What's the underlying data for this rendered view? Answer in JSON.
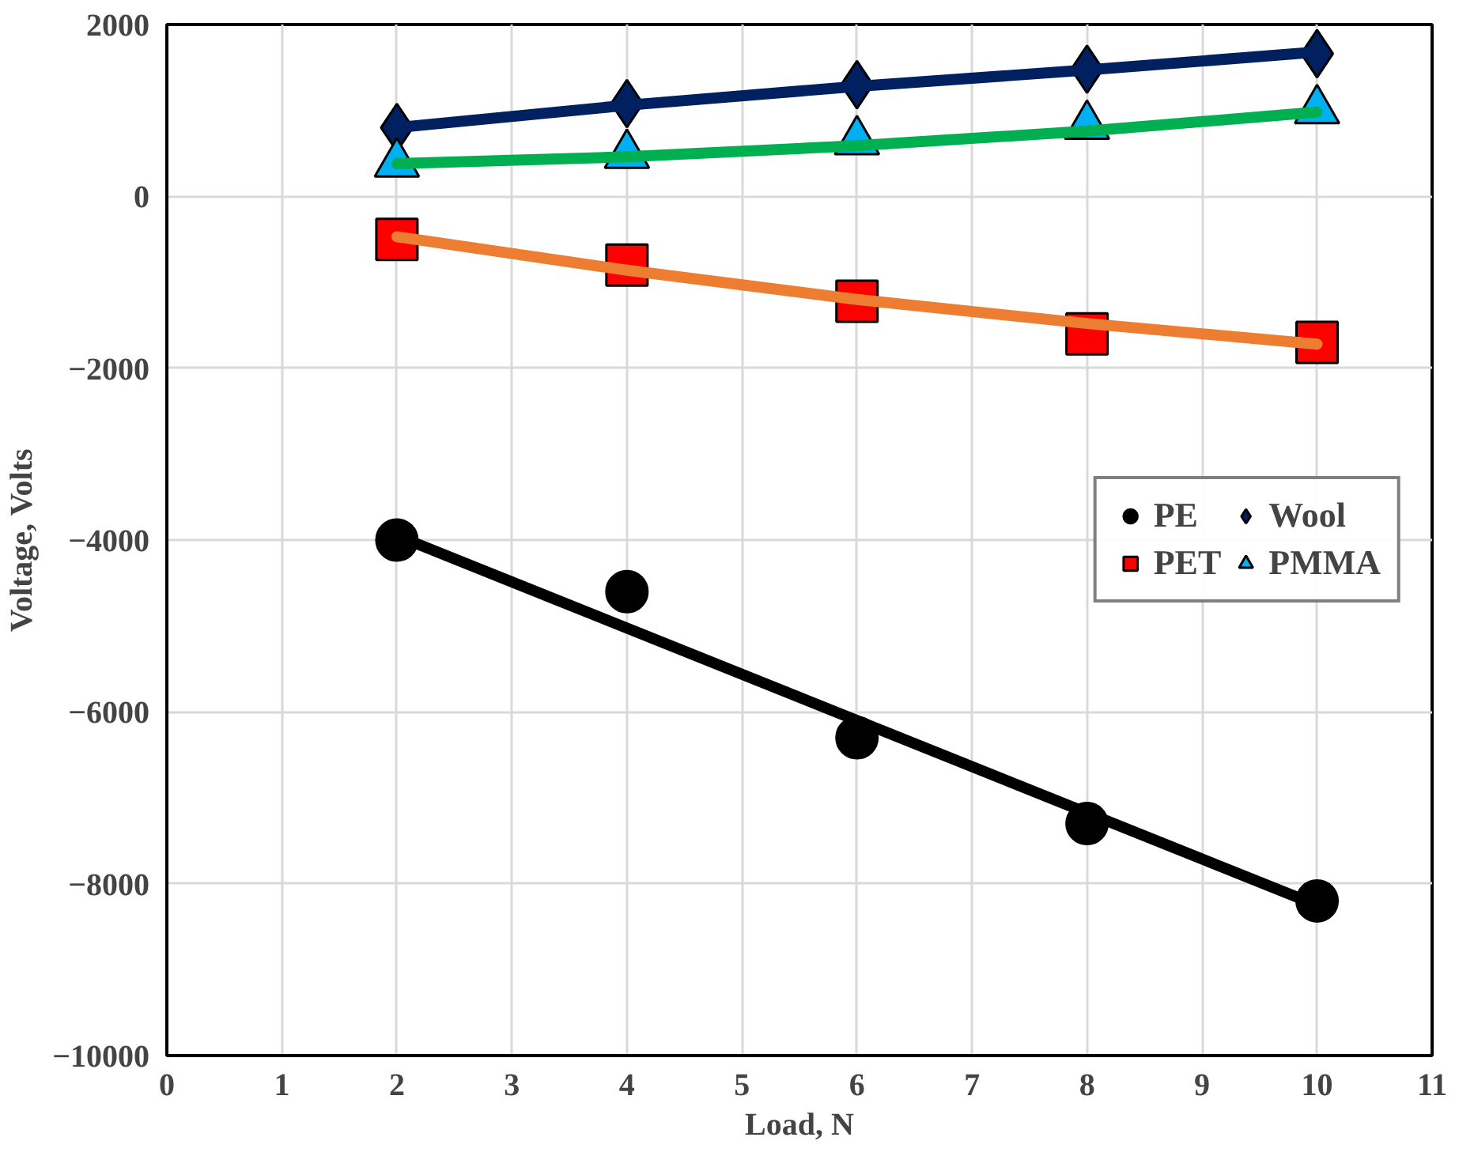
{
  "chart_data": {
    "type": "scatter",
    "xlabel": "Load, N",
    "ylabel": "Voltage, Volts",
    "xlim": [
      0,
      11
    ],
    "xticks": [
      0,
      1,
      2,
      3,
      4,
      5,
      6,
      7,
      8,
      9,
      10,
      11
    ],
    "ylim": [
      -10000,
      2000
    ],
    "yticks": [
      -10000,
      -8000,
      -6000,
      -4000,
      -2000,
      0,
      2000
    ],
    "grid": true,
    "legend": "right",
    "series": [
      {
        "name": "PE",
        "color": "#000000",
        "marker": "circle",
        "x": [
          2,
          4,
          6,
          8,
          10
        ],
        "values": [
          -4000,
          -4600,
          -6300,
          -7300,
          -8200
        ]
      },
      {
        "name": "PET",
        "color": "#ff0000",
        "marker": "square",
        "x": [
          2,
          4,
          6,
          8,
          10
        ],
        "values": [
          -500,
          -800,
          -1220,
          -1600,
          -1700
        ]
      },
      {
        "name": "Wool",
        "color": "#002060",
        "marker": "diamond",
        "x": [
          2,
          4,
          6,
          8,
          10
        ],
        "values": [
          800,
          1080,
          1300,
          1480,
          1660
        ]
      },
      {
        "name": "PMMA",
        "color": "#00b0f0",
        "marker": "triangle",
        "x": [
          2,
          4,
          6,
          8,
          10
        ],
        "values": [
          380,
          480,
          640,
          820,
          1000
        ]
      },
      {
        "type": "line",
        "color": "#000000",
        "x": [
          2,
          10
        ],
        "values": [
          -3950,
          -8250
        ]
      },
      {
        "type": "line",
        "color": "#ed7d31",
        "x": [
          2,
          4,
          6,
          8,
          10
        ],
        "values": [
          -470,
          -860,
          -1200,
          -1480,
          -1720
        ]
      },
      {
        "type": "line",
        "color": "#002060",
        "x": [
          2,
          4,
          6,
          8,
          10
        ],
        "values": [
          800,
          1060,
          1280,
          1470,
          1680
        ]
      },
      {
        "type": "line",
        "color": "#00b050",
        "x": [
          2,
          4,
          6,
          8,
          10
        ],
        "values": [
          380,
          460,
          590,
          760,
          980
        ]
      }
    ]
  }
}
